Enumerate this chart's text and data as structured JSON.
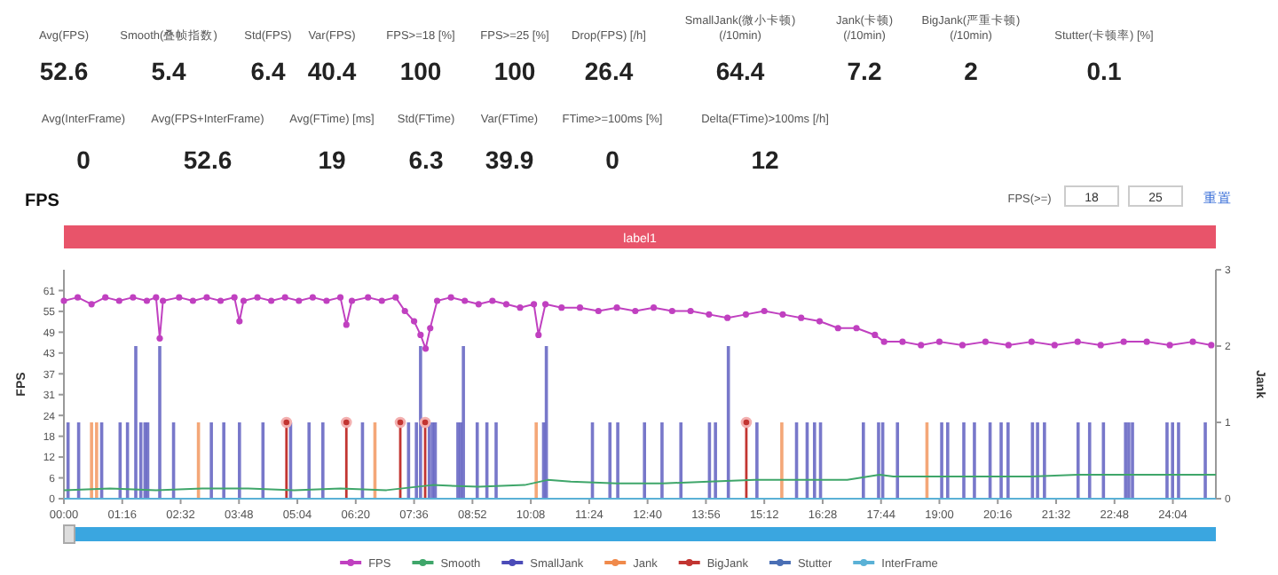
{
  "chart_data": [
    {
      "type": "other",
      "categories": [
        "Avg(FPS)",
        "Smooth(叠帧指数)",
        "Std(FPS)",
        "Var(FPS)",
        "FPS>=18 [%]",
        "FPS>=25 [%]",
        "Drop(FPS) [/h]",
        "SmallJank(微小卡顿)\n(/10min)",
        "Jank(卡顿)\n(/10min)",
        "BigJank(严重卡顿)\n(/10min)",
        "Stutter(卡顿率) [%]",
        "Avg(InterFrame)",
        "Avg(FPS+InterFrame)",
        "Avg(FTime) [ms]",
        "Std(FTime)",
        "Var(FTime)",
        "FTime>=100ms [%]",
        "Delta(FTime)>100ms [/h]"
      ],
      "values": [
        52.6,
        5.4,
        6.4,
        40.4,
        100,
        100,
        26.4,
        64.4,
        7.2,
        2,
        0.1,
        0,
        52.6,
        19,
        6.3,
        39.9,
        0,
        12
      ],
      "data_labels": true
    },
    {
      "type": "line",
      "title": "FPS",
      "ylabel": "FPS",
      "y2label": "Jank",
      "legend": "bottom",
      "annotations": [
        "FPS(>=)",
        "18",
        "25",
        "重置",
        "label1"
      ],
      "xlim": [
        0,
        25
      ],
      "xticks": [
        {
          "value": 0,
          "label": "00:00"
        },
        {
          "value": 1.2667,
          "label": "01:16"
        },
        {
          "value": 2.5333,
          "label": "02:32"
        },
        {
          "value": 3.8,
          "label": "03:48"
        },
        {
          "value": 5.0667,
          "label": "05:04"
        },
        {
          "value": 6.3333,
          "label": "06:20"
        },
        {
          "value": 7.6,
          "label": "07:36"
        },
        {
          "value": 8.8667,
          "label": "08:52"
        },
        {
          "value": 10.1333,
          "label": "10:08"
        },
        {
          "value": 11.4,
          "label": "11:24"
        },
        {
          "value": 12.6667,
          "label": "12:40"
        },
        {
          "value": 13.9333,
          "label": "13:56"
        },
        {
          "value": 15.2,
          "label": "15:12"
        },
        {
          "value": 16.4667,
          "label": "16:28"
        },
        {
          "value": 17.7333,
          "label": "17:44"
        },
        {
          "value": 19,
          "label": "19:00"
        },
        {
          "value": 20.2667,
          "label": "20:16"
        },
        {
          "value": 21.5333,
          "label": "21:32"
        },
        {
          "value": 22.8,
          "label": "22:48"
        },
        {
          "value": 24.0667,
          "label": "24:04"
        }
      ],
      "ylim": [
        0,
        67.1
      ],
      "yticks": [
        0,
        {
          "value": 6.1,
          "label": "6"
        },
        {
          "value": 12.2,
          "label": "12"
        },
        {
          "value": 18.3,
          "label": "18"
        },
        {
          "value": 24.4,
          "label": "24"
        },
        {
          "value": 30.5,
          "label": "31"
        },
        {
          "value": 36.6,
          "label": "37"
        },
        {
          "value": 42.7,
          "label": "43"
        },
        {
          "value": 48.8,
          "label": "49"
        },
        {
          "value": 54.9,
          "label": "55"
        },
        61
      ],
      "y2lim": [
        0,
        3
      ],
      "y2ticks": [
        0,
        1,
        2,
        3
      ],
      "series": [
        {
          "name": "FPS",
          "type": "line",
          "marker": "circle",
          "color": "#c040c0",
          "x": [
            0,
            0.3,
            0.6,
            0.9,
            1.2,
            1.5,
            1.8,
            2.0,
            2.08,
            2.15,
            2.5,
            2.8,
            3.1,
            3.4,
            3.7,
            3.81,
            3.9,
            4.2,
            4.5,
            4.8,
            5.1,
            5.4,
            5.7,
            6.0,
            6.13,
            6.25,
            6.6,
            6.9,
            7.2,
            7.4,
            7.6,
            7.74,
            7.85,
            7.95,
            8.1,
            8.4,
            8.7,
            9.0,
            9.3,
            9.6,
            9.9,
            10.2,
            10.3,
            10.45,
            10.8,
            11.2,
            11.6,
            12.0,
            12.4,
            12.8,
            13.2,
            13.6,
            14.0,
            14.4,
            14.8,
            15.2,
            15.6,
            16.0,
            16.4,
            16.8,
            17.2,
            17.6,
            17.8,
            18.2,
            18.6,
            19.0,
            19.5,
            20.0,
            20.5,
            21.0,
            21.5,
            22.0,
            22.5,
            23.0,
            23.5,
            24.0,
            24.5,
            24.9
          ],
          "values": [
            58,
            59,
            57,
            59,
            58,
            59,
            58,
            59,
            47,
            58,
            59,
            58,
            59,
            58,
            59,
            52,
            58,
            59,
            58,
            59,
            58,
            59,
            58,
            59,
            51,
            58,
            59,
            58,
            59,
            55,
            52,
            48,
            44,
            50,
            58,
            59,
            58,
            57,
            58,
            57,
            56,
            57,
            48,
            57,
            56,
            56,
            55,
            56,
            55,
            56,
            55,
            55,
            54,
            53,
            54,
            55,
            54,
            53,
            52,
            50,
            50,
            48,
            46,
            46,
            45,
            46,
            45,
            46,
            45,
            46,
            45,
            46,
            45,
            46,
            46,
            45,
            46,
            45
          ]
        },
        {
          "name": "Smooth",
          "type": "line",
          "color": "#3fa66a",
          "x": [
            0,
            1,
            2,
            3,
            4,
            5,
            6,
            7,
            8,
            9,
            10,
            10.5,
            11,
            12,
            13,
            14,
            15,
            16,
            17,
            17.7,
            18,
            19,
            20,
            21,
            22,
            23,
            24,
            25
          ],
          "values": [
            2.5,
            3,
            2.5,
            3,
            3,
            2.5,
            3,
            2.5,
            4,
            3.5,
            4,
            5.5,
            5,
            4.5,
            4.5,
            5,
            5.5,
            5.5,
            5.5,
            7,
            6.5,
            6.5,
            6.5,
            6.5,
            7,
            7,
            7,
            7
          ]
        },
        {
          "name": "SmallJank",
          "type": "bar",
          "axis": "y2",
          "color": "#4b4bb8",
          "x": [
            0.09,
            0.32,
            0.82,
            1.22,
            1.38,
            1.56,
            1.67,
            1.76,
            1.82,
            2.08,
            2.38,
            3.2,
            3.47,
            3.81,
            4.32,
            4.92,
            5.32,
            5.62,
            6.48,
            7.48,
            7.65,
            7.74,
            7.93,
            8.0,
            8.06,
            8.55,
            8.61,
            8.67,
            8.97,
            9.18,
            9.38,
            10.41,
            10.47,
            11.47,
            11.85,
            12.02,
            12.6,
            12.98,
            13.39,
            14.01,
            14.14,
            14.42,
            15.04,
            15.9,
            16.13,
            16.29,
            16.42,
            17.35,
            17.68,
            17.77,
            18.09,
            19.05,
            19.18,
            19.53,
            19.76,
            20.1,
            20.34,
            20.49,
            21.02,
            21.13,
            21.28,
            22.01,
            22.26,
            22.56,
            23.04,
            23.11,
            23.19,
            23.94,
            24.06,
            24.19,
            24.77
          ],
          "values": [
            1,
            1,
            1,
            1,
            1,
            2,
            1,
            1,
            1,
            2,
            1,
            1,
            1,
            1,
            1,
            1,
            1,
            1,
            1,
            1,
            1,
            2,
            1,
            1,
            1,
            1,
            1,
            2,
            1,
            1,
            1,
            1,
            2,
            1,
            1,
            1,
            1,
            1,
            1,
            1,
            1,
            2,
            1,
            1,
            1,
            1,
            1,
            1,
            1,
            1,
            1,
            1,
            1,
            1,
            1,
            1,
            1,
            1,
            1,
            1,
            1,
            1,
            1,
            1,
            1,
            1,
            1,
            1,
            1,
            1,
            1
          ]
        },
        {
          "name": "Jank",
          "type": "bar",
          "axis": "y2",
          "color": "#f08a4b",
          "x": [
            0.6,
            0.71,
            2.92,
            6.75,
            10.25,
            15.58,
            18.73
          ],
          "values": [
            1,
            1,
            1,
            1,
            1,
            1,
            1
          ]
        },
        {
          "name": "BigJank",
          "type": "lollipop",
          "axis": "y2",
          "color": "#c23531",
          "x": [
            4.83,
            6.13,
            7.3,
            7.84,
            14.81
          ],
          "values": [
            1,
            1,
            1,
            1,
            1
          ]
        },
        {
          "name": "Stutter",
          "type": "line",
          "axis": "y2",
          "color": "#4a6fb5",
          "x": [
            0,
            25
          ],
          "values": [
            0,
            0
          ]
        },
        {
          "name": "InterFrame",
          "type": "line",
          "color": "#5ab1d6",
          "x": [
            0,
            25
          ],
          "values": [
            0,
            0
          ]
        }
      ]
    }
  ]
}
